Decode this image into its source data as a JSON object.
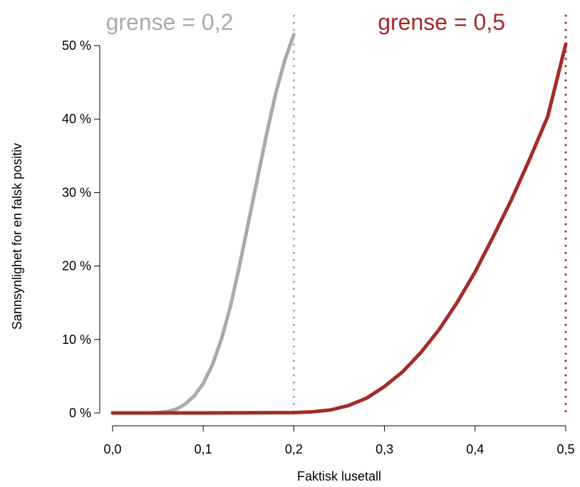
{
  "chart_data": {
    "type": "line",
    "title": "",
    "xlabel": "Faktisk lusetall",
    "ylabel": "Sannsynlighet for en falsk positiv",
    "xlim": [
      0,
      0.5
    ],
    "ylim": [
      0,
      50
    ],
    "grid": false,
    "x_ticks": [
      {
        "value": 0,
        "label": "0,0"
      },
      {
        "value": 0.1,
        "label": "0,1"
      },
      {
        "value": 0.2,
        "label": "0,2"
      },
      {
        "value": 0.3,
        "label": "0,3"
      },
      {
        "value": 0.4,
        "label": "0,4"
      },
      {
        "value": 0.5,
        "label": "0,5"
      }
    ],
    "y_ticks": [
      {
        "value": 0,
        "label": "0 %"
      },
      {
        "value": 10,
        "label": "10 %"
      },
      {
        "value": 20,
        "label": "20 %"
      },
      {
        "value": 30,
        "label": "30 %"
      },
      {
        "value": 40,
        "label": "40 %"
      },
      {
        "value": 50,
        "label": "50 %"
      }
    ],
    "series": [
      {
        "label": "grense = 0,2",
        "color": "#aaaaaa",
        "threshold": 0.2,
        "x": [
          0,
          0.02,
          0.04,
          0.05,
          0.06,
          0.07,
          0.08,
          0.09,
          0.1,
          0.11,
          0.12,
          0.13,
          0.14,
          0.15,
          0.16,
          0.17,
          0.18,
          0.19,
          0.2
        ],
        "y": [
          0,
          0,
          0,
          0.05,
          0.2,
          0.5,
          1.2,
          2.3,
          4,
          6.5,
          10,
          14.5,
          20,
          26,
          32,
          38,
          43.5,
          48,
          51.5
        ]
      },
      {
        "label": "grense = 0,5",
        "color": "#a52a2a",
        "threshold": 0.5,
        "x": [
          0,
          0.1,
          0.2,
          0.22,
          0.24,
          0.26,
          0.28,
          0.3,
          0.32,
          0.34,
          0.36,
          0.38,
          0.4,
          0.42,
          0.44,
          0.46,
          0.48,
          0.5
        ],
        "y": [
          0,
          0,
          0.05,
          0.15,
          0.4,
          1,
          2,
          3.6,
          5.6,
          8.2,
          11.3,
          15,
          19.2,
          24,
          29,
          34.5,
          40.3,
          50.2
        ]
      }
    ]
  }
}
